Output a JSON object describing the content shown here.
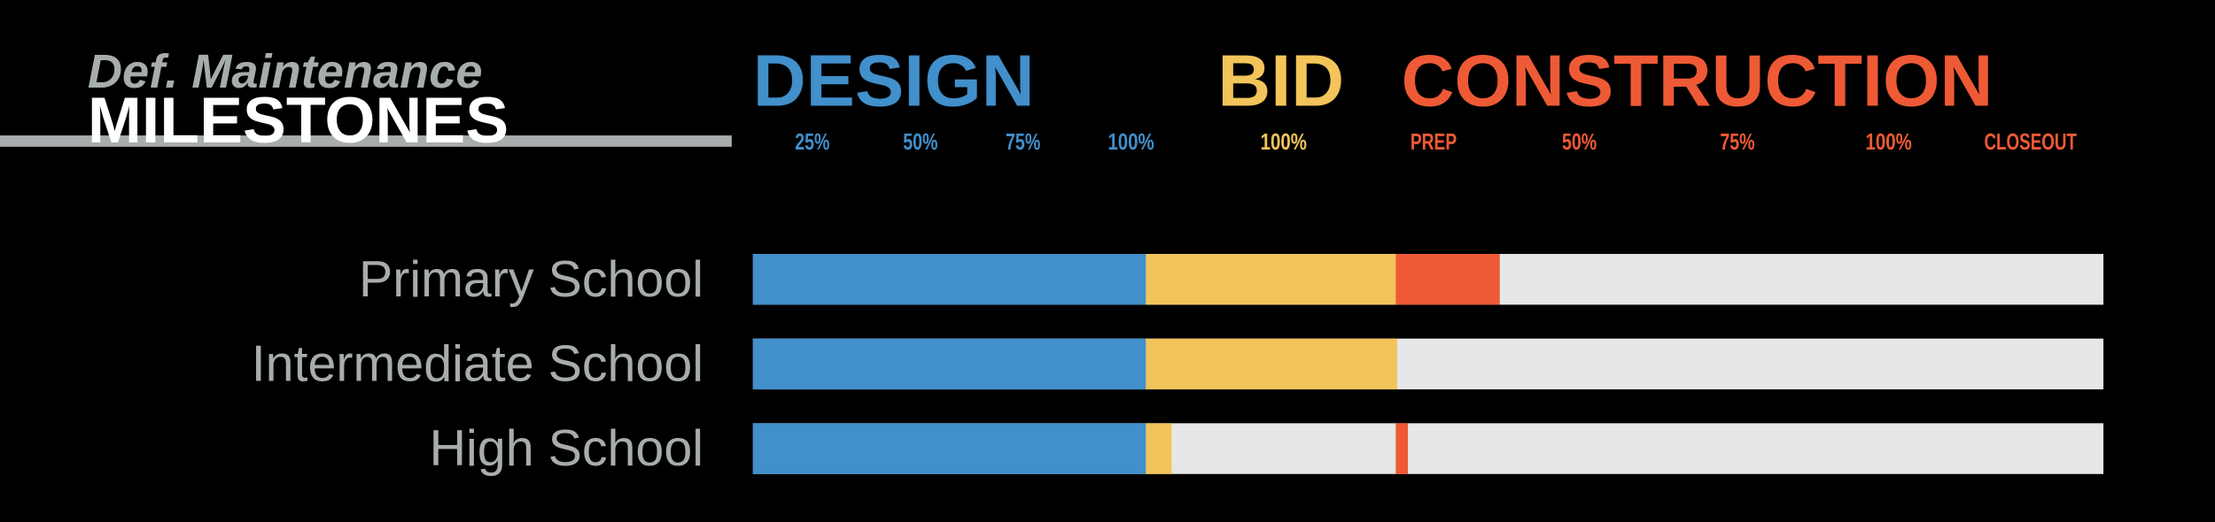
{
  "chart_data": {
    "type": "floating-bar",
    "title": "Def. Maintenance",
    "subtitle": "MILESTONES",
    "categories": [
      "Primary School",
      "Intermediate School",
      "High School"
    ],
    "xlim": [
      0,
      100
    ],
    "xticks": [
      {
        "value": 4.4,
        "label": "25%"
      },
      {
        "value": 12.4,
        "label": "50%"
      },
      {
        "value": 20.0,
        "label": "75%"
      },
      {
        "value": 28.0,
        "label": "100%"
      },
      {
        "value": 39.3,
        "label": "100%"
      },
      {
        "value": 50.4,
        "label": "PREP"
      },
      {
        "value": 61.2,
        "label": "50%"
      },
      {
        "value": 72.9,
        "label": "75%"
      },
      {
        "value": 84.1,
        "label": "100%"
      },
      {
        "value": 94.6,
        "label": "CLOSEOUT"
      }
    ],
    "xtick_colors": [
      "#418fcb",
      "#418fcb",
      "#418fcb",
      "#418fcb",
      "#f2c45a",
      "#ee5a35",
      "#ee5a35",
      "#ee5a35",
      "#ee5a35",
      "#ee5a35"
    ],
    "track_color": "#e6e7e8",
    "series": [
      {
        "name": "DESIGN",
        "color": "#418fcb",
        "start": [
          0,
          0,
          0
        ],
        "end": [
          29.1,
          29.1,
          29.1
        ]
      },
      {
        "name": "BID",
        "color": "#f2c45a",
        "start": [
          29.1,
          29.1,
          29.1
        ],
        "end": [
          47.6,
          47.7,
          31.0
        ]
      },
      {
        "name": "CONSTRUCTION",
        "color": "#ee5a35",
        "start": [
          47.6,
          null,
          47.6
        ],
        "end": [
          55.3,
          null,
          48.5
        ]
      }
    ]
  }
}
